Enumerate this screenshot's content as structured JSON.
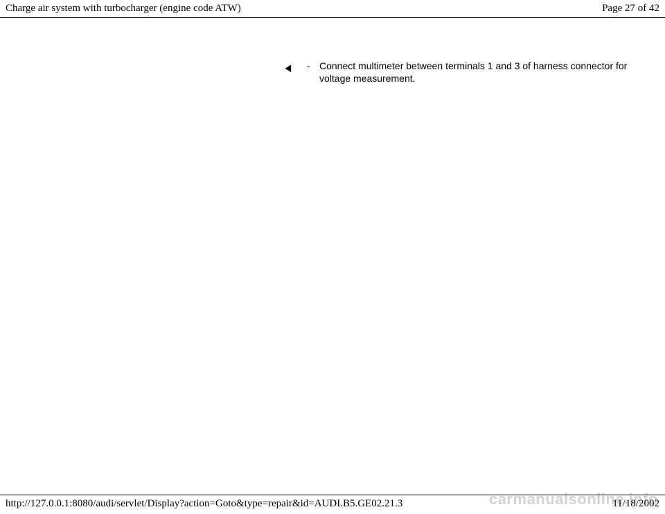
{
  "header": {
    "title": "Charge air system with turbocharger (engine code ATW)",
    "page_label": "Page 27 of 42"
  },
  "content": {
    "pointer_glyph": "◄",
    "bullet": "-",
    "instruction": "Connect multimeter between terminals 1 and 3 of harness connector for voltage measurement."
  },
  "footer": {
    "url": "http://127.0.0.1:8080/audi/servlet/Display?action=Goto&type=repair&id=AUDI.B5.GE02.21.3",
    "date": "11/18/2002"
  },
  "watermark": "carmanualsonline.info"
}
